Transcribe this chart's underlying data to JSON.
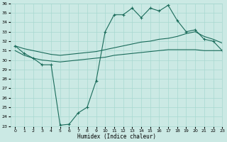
{
  "xlabel": "Humidex (Indice chaleur)",
  "x_ticks": [
    0,
    1,
    2,
    3,
    4,
    5,
    6,
    7,
    8,
    9,
    10,
    11,
    12,
    13,
    14,
    15,
    16,
    17,
    18,
    19,
    20,
    21,
    22,
    23
  ],
  "ylim": [
    23,
    36
  ],
  "xlim": [
    -0.5,
    23
  ],
  "y_ticks": [
    23,
    24,
    25,
    26,
    27,
    28,
    29,
    30,
    31,
    32,
    33,
    34,
    35,
    36
  ],
  "bg_color": "#cbe9e4",
  "grid_color": "#a8d8d0",
  "line_color": "#1a6b5a",
  "series1_x": [
    0,
    1,
    2,
    3,
    4,
    5,
    6,
    7,
    8,
    9,
    10,
    11,
    12,
    13,
    14,
    15,
    16,
    17,
    18,
    19,
    20,
    21,
    22,
    23
  ],
  "series1_y": [
    31.5,
    30.7,
    30.2,
    29.5,
    29.5,
    23.1,
    23.2,
    24.4,
    25.0,
    27.8,
    33.0,
    34.8,
    34.8,
    35.5,
    34.5,
    35.5,
    35.2,
    35.8,
    34.2,
    33.0,
    33.2,
    32.2,
    32.0,
    31.0
  ],
  "series2_x": [
    0,
    1,
    2,
    3,
    4,
    5,
    6,
    7,
    8,
    9,
    10,
    11,
    12,
    13,
    14,
    15,
    16,
    17,
    18,
    19,
    20,
    21,
    22,
    23
  ],
  "series2_y": [
    31.5,
    31.2,
    31.0,
    30.8,
    30.6,
    30.5,
    30.6,
    30.7,
    30.8,
    30.9,
    31.1,
    31.3,
    31.5,
    31.7,
    31.9,
    32.0,
    32.2,
    32.3,
    32.5,
    32.8,
    33.0,
    32.5,
    32.2,
    31.8
  ],
  "series3_x": [
    0,
    1,
    2,
    3,
    4,
    5,
    6,
    7,
    8,
    9,
    10,
    11,
    12,
    13,
    14,
    15,
    16,
    17,
    18,
    19,
    20,
    21,
    22,
    23
  ],
  "series3_y": [
    31.0,
    30.5,
    30.2,
    30.0,
    29.9,
    29.8,
    29.9,
    30.0,
    30.1,
    30.2,
    30.3,
    30.5,
    30.6,
    30.7,
    30.8,
    30.9,
    31.0,
    31.1,
    31.1,
    31.1,
    31.1,
    31.0,
    31.0,
    31.0
  ]
}
